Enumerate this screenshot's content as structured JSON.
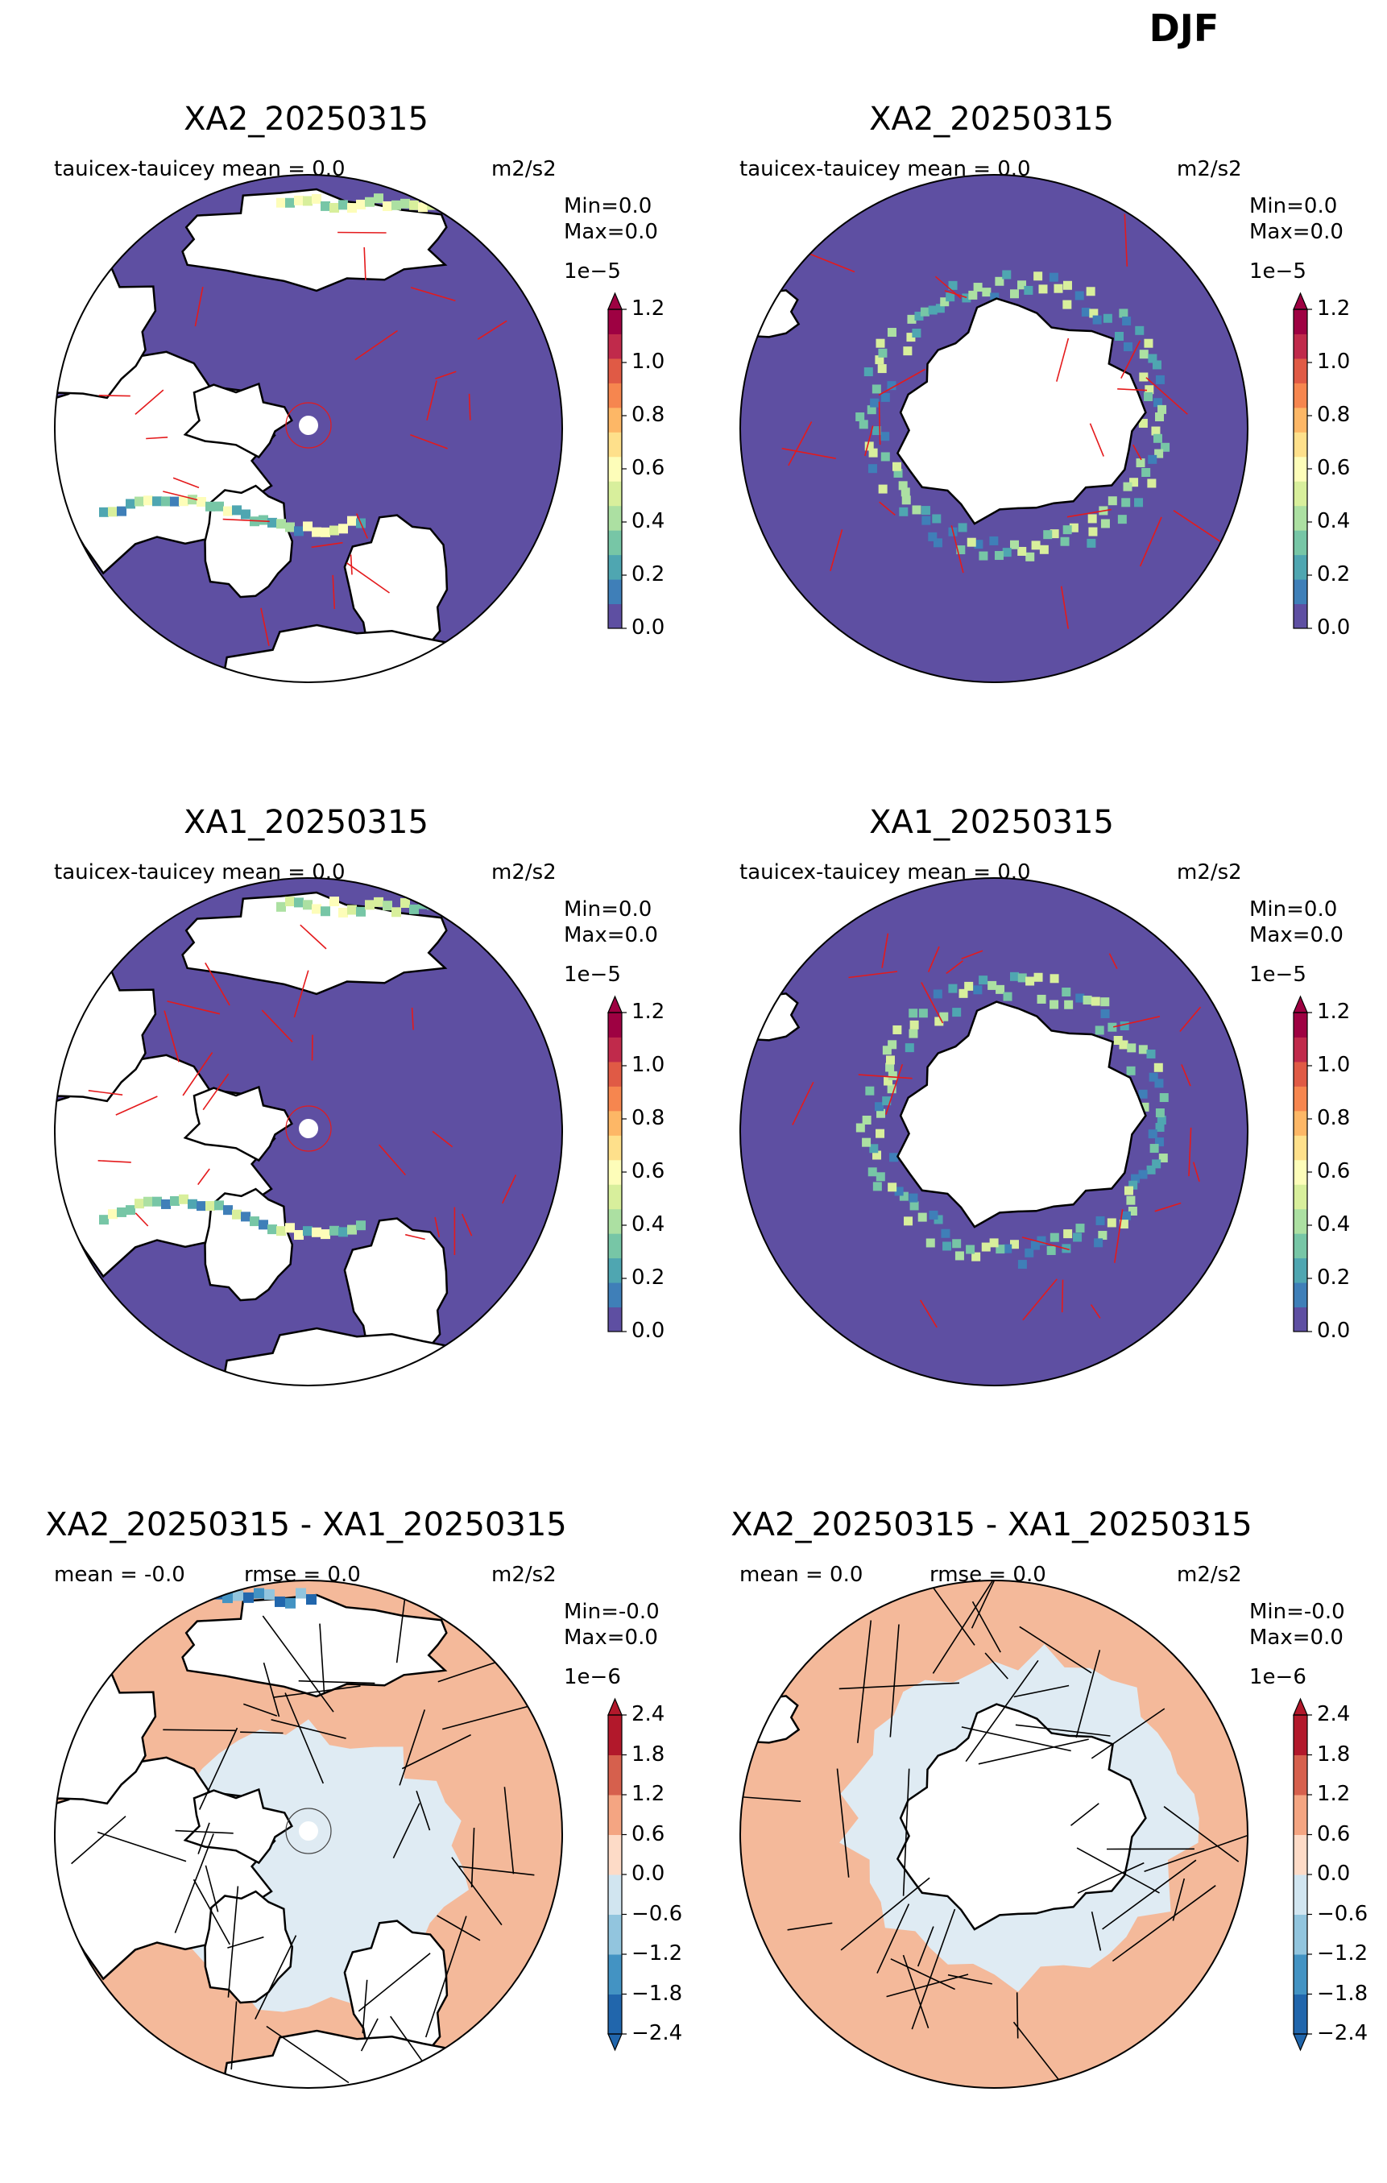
{
  "suptitle": "DJF",
  "units": "m2/s2",
  "panels": [
    {
      "id": "arctic-xa2",
      "title": "XA2_20250315",
      "stat_left": "tauicex-tauicey  mean = 0.0",
      "stat_mid": "",
      "min_text": "Min=0.0",
      "max_text": " Max=0.0",
      "cb": "seq",
      "hemi": "N",
      "variant": 1
    },
    {
      "id": "antarctic-xa2",
      "title": "XA2_20250315",
      "stat_left": "tauicex-tauicey  mean = 0.0",
      "stat_mid": "",
      "min_text": "Min=0.0",
      "max_text": " Max=0.0",
      "cb": "seq",
      "hemi": "S",
      "variant": 1
    },
    {
      "id": "arctic-xa1",
      "title": "XA1_20250315",
      "stat_left": "tauicex-tauicey  mean = 0.0",
      "stat_mid": "",
      "min_text": "Min=0.0",
      "max_text": " Max=0.0",
      "cb": "seq",
      "hemi": "N",
      "variant": 2
    },
    {
      "id": "antarctic-xa1",
      "title": "XA1_20250315",
      "stat_left": "tauicex-tauicey  mean = 0.0",
      "stat_mid": "",
      "min_text": "Min=0.0",
      "max_text": " Max=0.0",
      "cb": "seq",
      "hemi": "S",
      "variant": 2
    },
    {
      "id": "arctic-diff",
      "title": "XA2_20250315 - XA1_20250315",
      "stat_left": "mean = -0.0",
      "stat_mid": "rmse = 0.0",
      "min_text": "Min=-0.0",
      "max_text": "Max=0.0",
      "cb": "div",
      "hemi": "N",
      "variant": 3
    },
    {
      "id": "antarctic-diff",
      "title": "XA2_20250315 - XA1_20250315",
      "stat_left": "mean = 0.0",
      "stat_mid": "rmse = 0.0",
      "min_text": "Min=-0.0",
      "max_text": "Max=0.0",
      "cb": "div",
      "hemi": "S",
      "variant": 3
    }
  ],
  "colorbars": {
    "seq": {
      "exponent": "1e−5",
      "ticks": [
        "0.0",
        "0.2",
        "0.4",
        "0.6",
        "0.8",
        "1.0",
        "1.2"
      ],
      "colors": [
        "#5e4fa2",
        "#3f7fb8",
        "#4fa6b1",
        "#77c6a6",
        "#ace0a2",
        "#d8ef9c",
        "#fdfdb9",
        "#fee08b",
        "#fdb766",
        "#f6864f",
        "#e05a45",
        "#c02a4b",
        "#9e0142"
      ],
      "extend": "max"
    },
    "div": {
      "exponent": "1e−6",
      "ticks": [
        "−2.4",
        "−1.8",
        "−1.2",
        "−0.6",
        "0.0",
        "0.6",
        "1.2",
        "1.8",
        "2.4"
      ],
      "colors": [
        "#2166ac",
        "#4393c3",
        "#92c5de",
        "#d1e5f0",
        "#fddbc7",
        "#f4a582",
        "#d6604d",
        "#b2182b"
      ],
      "extend": "both"
    }
  },
  "map_colors": {
    "ocean_seq": "#5e4fa2",
    "ocean_div": "#f4b99a",
    "ice_div": "#dfebf3",
    "land": "#ffffff",
    "coast": "#000000",
    "arrow_seq": "#e41a1c",
    "arrow_div": "#000000"
  }
}
